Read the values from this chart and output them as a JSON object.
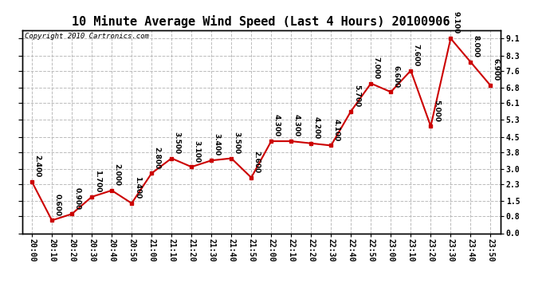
{
  "title": "10 Minute Average Wind Speed (Last 4 Hours) 20100906",
  "copyright": "Copyright 2010 Cartronics.com",
  "x_labels": [
    "20:00",
    "20:10",
    "20:20",
    "20:30",
    "20:40",
    "20:50",
    "21:00",
    "21:10",
    "21:20",
    "21:30",
    "21:40",
    "21:50",
    "22:00",
    "22:10",
    "22:20",
    "22:30",
    "22:40",
    "22:50",
    "23:00",
    "23:10",
    "23:20",
    "23:30",
    "23:40",
    "23:50"
  ],
  "y_values": [
    2.4,
    0.6,
    0.9,
    1.7,
    2.0,
    1.4,
    2.8,
    3.5,
    3.1,
    3.4,
    3.5,
    2.6,
    4.3,
    4.3,
    4.2,
    4.1,
    5.7,
    7.0,
    6.6,
    7.6,
    5.0,
    9.1,
    8.0,
    6.9
  ],
  "y_labels": [
    0.0,
    0.8,
    1.5,
    2.3,
    3.0,
    3.8,
    4.5,
    5.3,
    6.1,
    6.8,
    7.6,
    8.3,
    9.1
  ],
  "ylim": [
    0.0,
    9.5
  ],
  "line_color": "#cc0000",
  "marker_color": "#cc0000",
  "bg_color": "#ffffff",
  "grid_color": "#bbbbbb",
  "title_fontsize": 11,
  "label_fontsize": 7,
  "annotation_fontsize": 6.5,
  "copyright_fontsize": 6.5
}
